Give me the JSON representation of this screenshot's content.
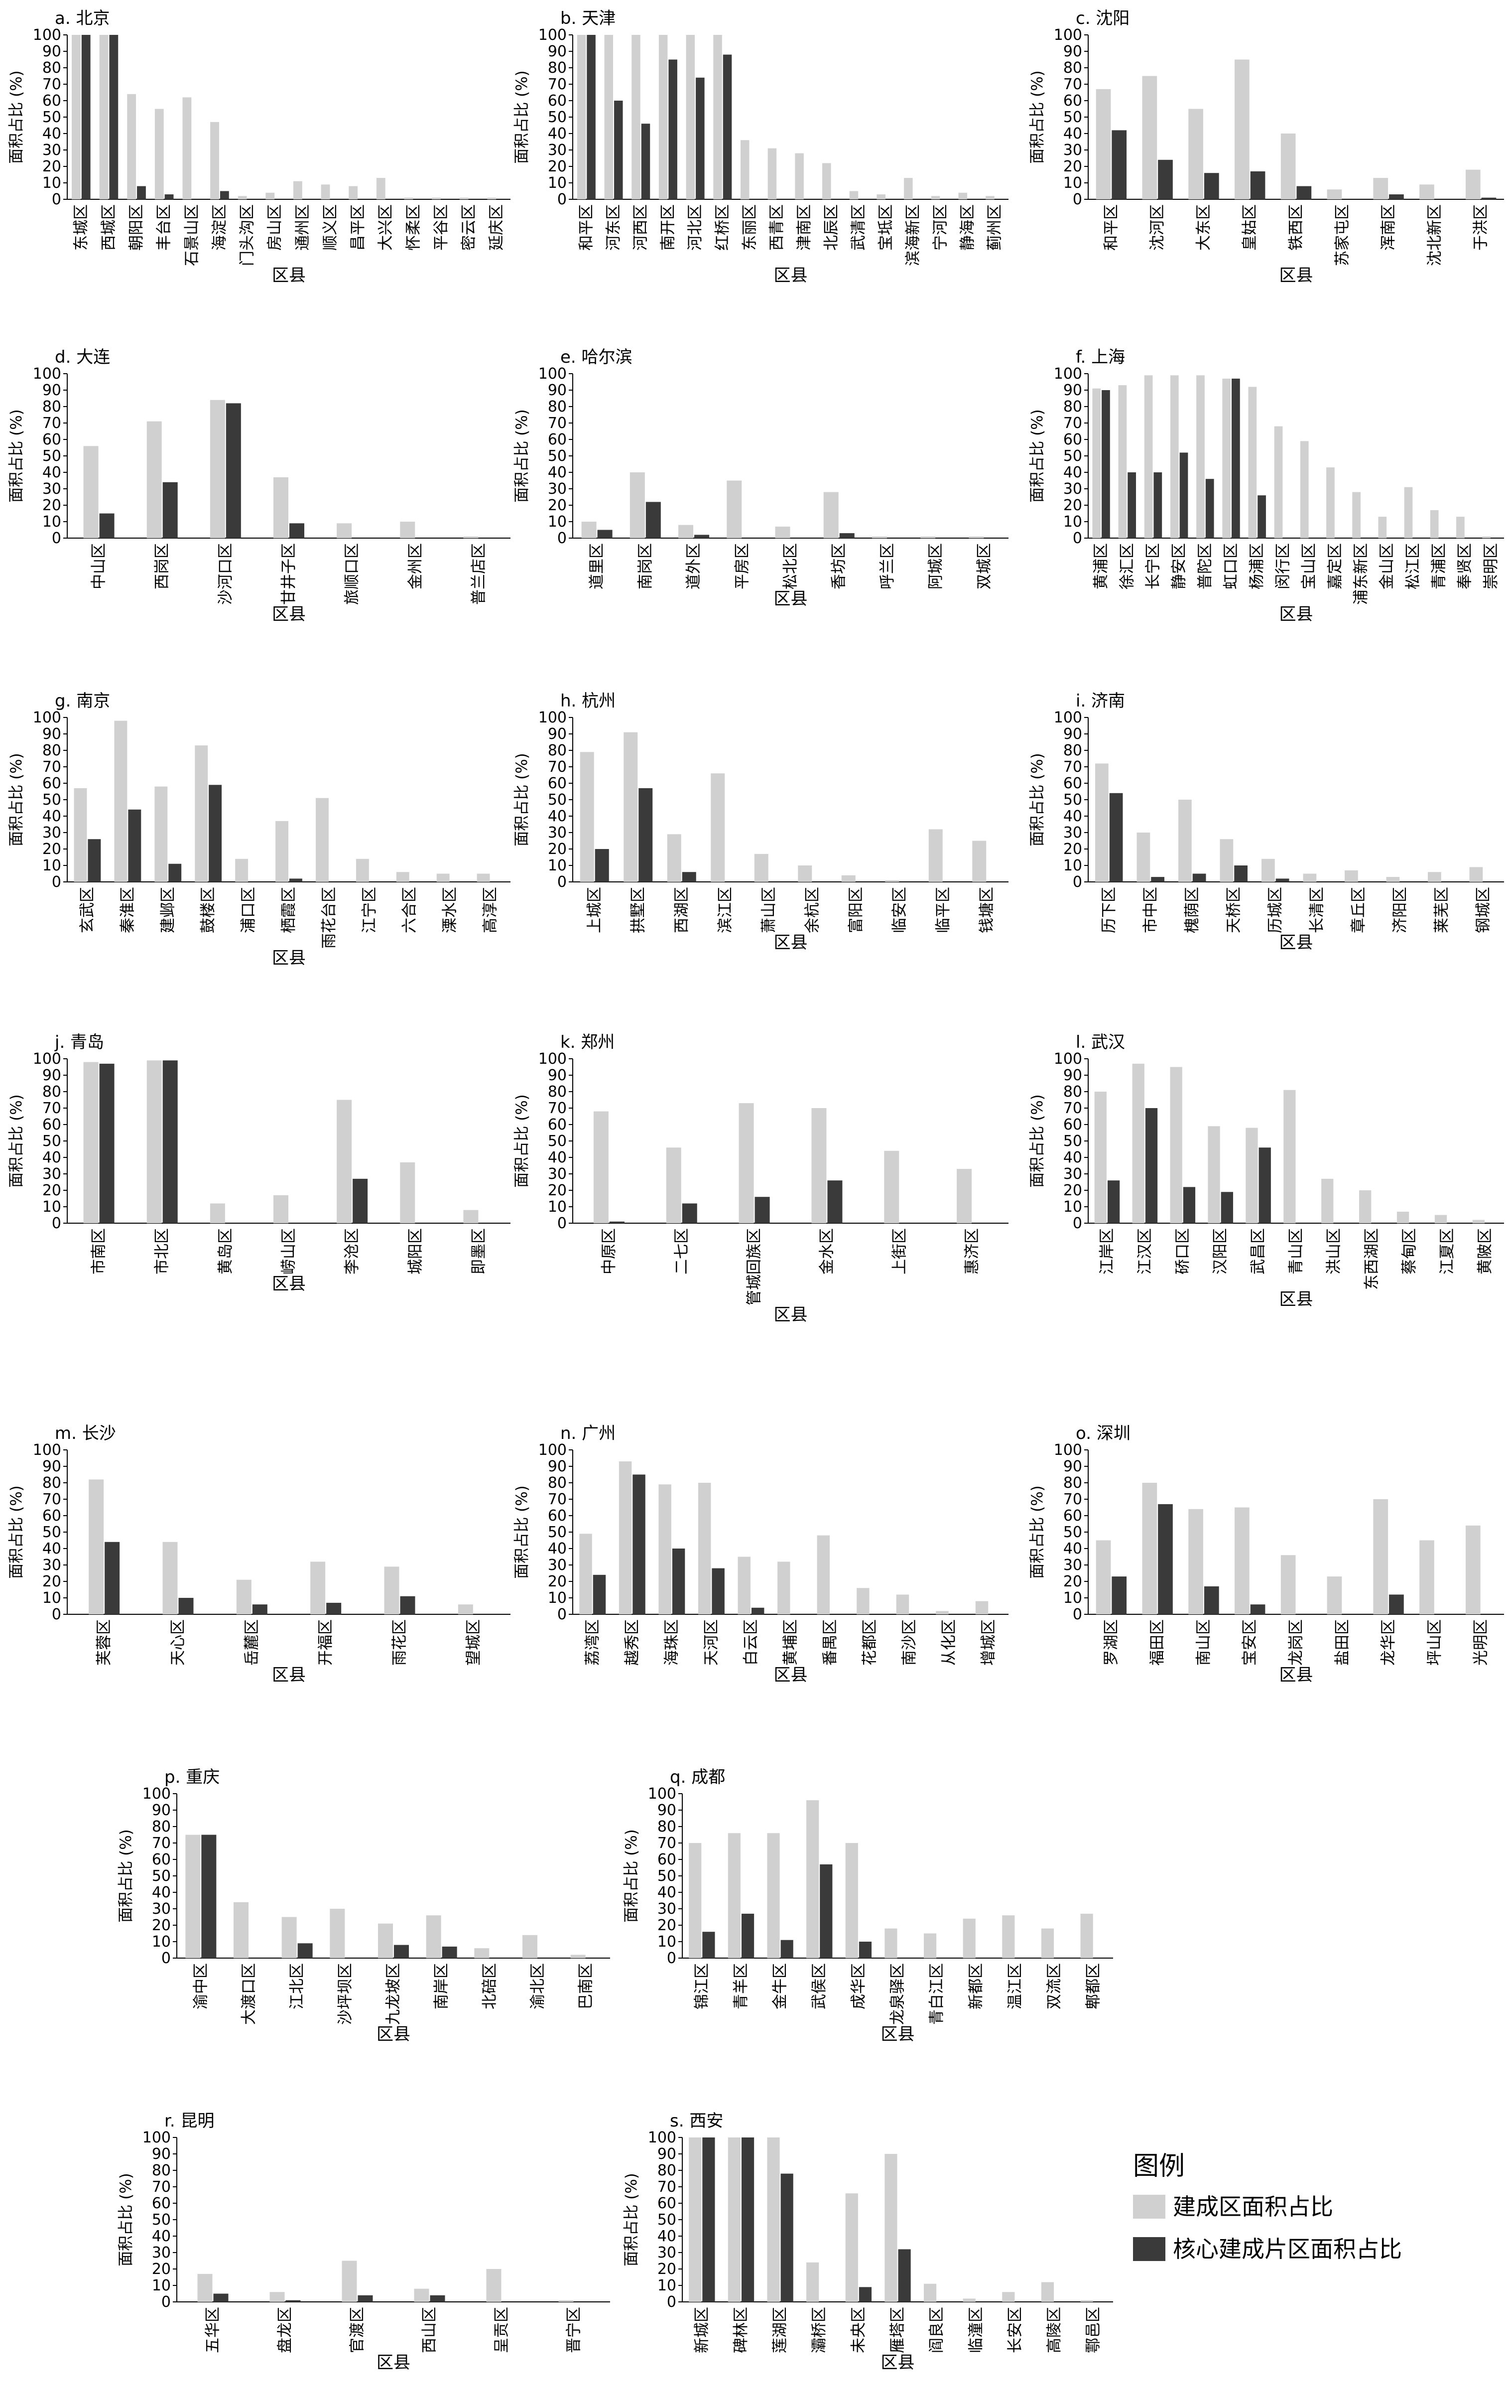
{
  "colors": {
    "built": "#d0d0d0",
    "core": "#3a3a3a"
  },
  "axis": {
    "ylabel": "面积占比 (%)",
    "xlabel": "区县",
    "yticks": [
      "0",
      "10",
      "20",
      "30",
      "40",
      "50",
      "60",
      "70",
      "80",
      "90",
      "100"
    ],
    "ylim": [
      0,
      100
    ]
  },
  "legend": {
    "title": "图例",
    "items": [
      "建成区面积占比",
      "核心建成片区面积占比"
    ]
  },
  "chart_data": [
    {
      "type": "bar",
      "title": "a. 北京",
      "categories": [
        "东城区",
        "西城区",
        "朝阳区",
        "丰台区",
        "石景山区",
        "海淀区",
        "门头沟区",
        "房山区",
        "通州区",
        "顺义区",
        "昌平区",
        "大兴区",
        "怀柔区",
        "平谷区",
        "密云区",
        "延庆区"
      ],
      "series": [
        {
          "values": [
            100,
            100,
            64,
            55,
            62,
            47,
            2,
            4,
            11,
            9,
            8,
            13,
            1,
            1,
            1,
            1
          ]
        },
        {
          "values": [
            100,
            100,
            8,
            3,
            0,
            5,
            0,
            0,
            0,
            0,
            0,
            0,
            0,
            0,
            0,
            0
          ]
        }
      ]
    },
    {
      "type": "bar",
      "title": "b. 天津",
      "categories": [
        "和平区",
        "河东区",
        "河西区",
        "南开区",
        "河北区",
        "红桥区",
        "东丽区",
        "西青区",
        "津南区",
        "北辰区",
        "武清区",
        "宝坻区",
        "滨海新区",
        "宁河区",
        "静海区",
        "蓟州区"
      ],
      "series": [
        {
          "values": [
            100,
            100,
            100,
            100,
            100,
            100,
            36,
            31,
            28,
            22,
            5,
            3,
            13,
            2,
            4,
            2
          ]
        },
        {
          "values": [
            100,
            60,
            46,
            85,
            74,
            88,
            0,
            0,
            0,
            0,
            0,
            0,
            0,
            0,
            0,
            0
          ]
        }
      ]
    },
    {
      "type": "bar",
      "title": "c. 沈阳",
      "categories": [
        "和平区",
        "沈河区",
        "大东区",
        "皇姑区",
        "铁西区",
        "苏家屯区",
        "浑南区",
        "沈北新区",
        "于洪区"
      ],
      "series": [
        {
          "values": [
            67,
            75,
            55,
            85,
            40,
            6,
            13,
            9,
            18
          ]
        },
        {
          "values": [
            42,
            24,
            16,
            17,
            8,
            0,
            3,
            0,
            1
          ]
        }
      ]
    },
    {
      "type": "bar",
      "title": "d. 大连",
      "categories": [
        "中山区",
        "西岗区",
        "沙河口区",
        "甘井子区",
        "旅顺口区",
        "金州区",
        "普兰店区"
      ],
      "series": [
        {
          "values": [
            56,
            71,
            84,
            37,
            9,
            10,
            1
          ]
        },
        {
          "values": [
            15,
            34,
            82,
            9,
            0,
            0,
            0
          ]
        }
      ]
    },
    {
      "type": "bar",
      "title": "e. 哈尔滨",
      "categories": [
        "道里区",
        "南岗区",
        "道外区",
        "平房区",
        "松北区",
        "香坊区",
        "呼兰区",
        "阿城区",
        "双城区"
      ],
      "series": [
        {
          "values": [
            10,
            40,
            8,
            35,
            7,
            28,
            1,
            1,
            1
          ]
        },
        {
          "values": [
            5,
            22,
            2,
            0,
            0,
            3,
            0,
            0,
            0
          ]
        }
      ]
    },
    {
      "type": "bar",
      "title": "f. 上海",
      "categories": [
        "黄浦区",
        "徐汇区",
        "长宁区",
        "静安区",
        "普陀区",
        "虹口区",
        "杨浦区",
        "闵行区",
        "宝山区",
        "嘉定区",
        "浦东新区",
        "金山区",
        "松江区",
        "青浦区",
        "奉贤区",
        "崇明区"
      ],
      "series": [
        {
          "values": [
            91,
            93,
            99,
            99,
            99,
            97,
            92,
            68,
            59,
            43,
            28,
            13,
            31,
            17,
            13,
            1
          ]
        },
        {
          "values": [
            90,
            40,
            40,
            52,
            36,
            97,
            26,
            0,
            0,
            0,
            0,
            0,
            0,
            0,
            0,
            0
          ]
        }
      ]
    },
    {
      "type": "bar",
      "title": "g. 南京",
      "categories": [
        "玄武区",
        "秦淮区",
        "建邺区",
        "鼓楼区",
        "浦口区",
        "栖霞区",
        "雨花台区",
        "江宁区",
        "六合区",
        "溧水区",
        "高淳区"
      ],
      "series": [
        {
          "values": [
            57,
            98,
            58,
            83,
            14,
            37,
            51,
            14,
            6,
            5,
            5
          ]
        },
        {
          "values": [
            26,
            44,
            11,
            59,
            0,
            2,
            0,
            0,
            0,
            0,
            0
          ]
        }
      ]
    },
    {
      "type": "bar",
      "title": "h. 杭州",
      "categories": [
        "上城区",
        "拱墅区",
        "西湖区",
        "滨江区",
        "萧山区",
        "余杭区",
        "富阳区",
        "临安区",
        "临平区",
        "钱塘区"
      ],
      "series": [
        {
          "values": [
            79,
            91,
            29,
            66,
            17,
            10,
            4,
            1,
            32,
            25
          ]
        },
        {
          "values": [
            20,
            57,
            6,
            0,
            0,
            0,
            0,
            0,
            0,
            0
          ]
        }
      ]
    },
    {
      "type": "bar",
      "title": "i. 济南",
      "categories": [
        "历下区",
        "市中区",
        "槐荫区",
        "天桥区",
        "历城区",
        "长清区",
        "章丘区",
        "济阳区",
        "莱芜区",
        "钢城区"
      ],
      "series": [
        {
          "values": [
            72,
            30,
            50,
            26,
            14,
            5,
            7,
            3,
            6,
            9
          ]
        },
        {
          "values": [
            54,
            3,
            5,
            10,
            2,
            0,
            0,
            0,
            0,
            0
          ]
        }
      ]
    },
    {
      "type": "bar",
      "title": "j. 青岛",
      "categories": [
        "市南区",
        "市北区",
        "黄岛区",
        "崂山区",
        "李沧区",
        "城阳区",
        "即墨区"
      ],
      "series": [
        {
          "values": [
            98,
            99,
            12,
            17,
            75,
            37,
            8
          ]
        },
        {
          "values": [
            97,
            99,
            0,
            0,
            27,
            0,
            0
          ]
        }
      ]
    },
    {
      "type": "bar",
      "title": "k. 郑州",
      "categories": [
        "中原区",
        "二七区",
        "管城回族区",
        "金水区",
        "上街区",
        "惠济区"
      ],
      "series": [
        {
          "values": [
            68,
            46,
            73,
            70,
            44,
            33
          ]
        },
        {
          "values": [
            1,
            12,
            16,
            26,
            0,
            0
          ]
        }
      ]
    },
    {
      "type": "bar",
      "title": "l. 武汉",
      "categories": [
        "江岸区",
        "江汉区",
        "硚口区",
        "汉阳区",
        "武昌区",
        "青山区",
        "洪山区",
        "东西湖区",
        "蔡甸区",
        "江夏区",
        "黄陂区"
      ],
      "series": [
        {
          "values": [
            80,
            97,
            95,
            59,
            58,
            81,
            27,
            20,
            7,
            5,
            2
          ]
        },
        {
          "values": [
            26,
            70,
            22,
            19,
            46,
            0,
            0,
            0,
            0,
            0,
            0
          ]
        }
      ]
    },
    {
      "type": "bar",
      "title": "m. 长沙",
      "categories": [
        "芙蓉区",
        "天心区",
        "岳麓区",
        "开福区",
        "雨花区",
        "望城区"
      ],
      "series": [
        {
          "values": [
            82,
            44,
            21,
            32,
            29,
            6
          ]
        },
        {
          "values": [
            44,
            10,
            6,
            7,
            11,
            0
          ]
        }
      ]
    },
    {
      "type": "bar",
      "title": "n. 广州",
      "categories": [
        "荔湾区",
        "越秀区",
        "海珠区",
        "天河区",
        "白云区",
        "黄埔区",
        "番禺区",
        "花都区",
        "南沙区",
        "从化区",
        "增城区"
      ],
      "series": [
        {
          "values": [
            49,
            93,
            79,
            80,
            35,
            32,
            48,
            16,
            12,
            2,
            8
          ]
        },
        {
          "values": [
            24,
            85,
            40,
            28,
            4,
            0,
            0,
            0,
            0,
            0,
            0
          ]
        }
      ]
    },
    {
      "type": "bar",
      "title": "o. 深圳",
      "categories": [
        "罗湖区",
        "福田区",
        "南山区",
        "宝安区",
        "龙岗区",
        "盐田区",
        "龙华区",
        "坪山区",
        "光明区"
      ],
      "series": [
        {
          "values": [
            45,
            80,
            64,
            65,
            36,
            23,
            70,
            45,
            54
          ]
        },
        {
          "values": [
            23,
            67,
            17,
            6,
            0,
            0,
            12,
            0,
            0
          ]
        }
      ]
    },
    {
      "type": "bar",
      "title": "p. 重庆",
      "categories": [
        "渝中区",
        "大渡口区",
        "江北区",
        "沙坪坝区",
        "九龙坡区",
        "南岸区",
        "北碚区",
        "渝北区",
        "巴南区"
      ],
      "series": [
        {
          "values": [
            75,
            34,
            25,
            30,
            21,
            26,
            6,
            14,
            2
          ]
        },
        {
          "values": [
            75,
            0,
            9,
            0,
            8,
            7,
            0,
            0,
            0
          ]
        }
      ]
    },
    {
      "type": "bar",
      "title": "q. 成都",
      "categories": [
        "锦江区",
        "青羊区",
        "金牛区",
        "武侯区",
        "成华区",
        "龙泉驿区",
        "青白江区",
        "新都区",
        "温江区",
        "双流区",
        "郫都区"
      ],
      "series": [
        {
          "values": [
            70,
            76,
            76,
            96,
            70,
            18,
            15,
            24,
            26,
            18,
            27
          ]
        },
        {
          "values": [
            16,
            27,
            11,
            57,
            10,
            0,
            0,
            0,
            0,
            0,
            0
          ]
        }
      ]
    },
    {
      "type": "bar",
      "title": "r. 昆明",
      "categories": [
        "五华区",
        "盘龙区",
        "官渡区",
        "西山区",
        "呈贡区",
        "晋宁区"
      ],
      "series": [
        {
          "values": [
            17,
            6,
            25,
            8,
            20,
            1
          ]
        },
        {
          "values": [
            5,
            1,
            4,
            4,
            0,
            0
          ]
        }
      ]
    },
    {
      "type": "bar",
      "title": "s. 西安",
      "categories": [
        "新城区",
        "碑林区",
        "莲湖区",
        "灞桥区",
        "未央区",
        "雁塔区",
        "阎良区",
        "临潼区",
        "长安区",
        "高陵区",
        "鄠邑区"
      ],
      "series": [
        {
          "values": [
            100,
            100,
            100,
            24,
            66,
            90,
            11,
            2,
            6,
            12,
            1
          ]
        },
        {
          "values": [
            100,
            100,
            78,
            0,
            9,
            32,
            0,
            0,
            0,
            0,
            0
          ]
        }
      ]
    }
  ]
}
